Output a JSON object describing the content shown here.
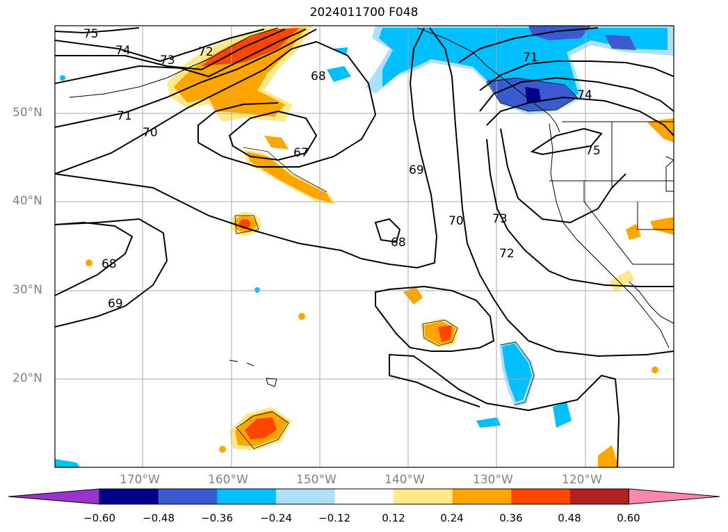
{
  "title": "2024011700 F048",
  "lat_labels": [
    "50°N",
    "40°N",
    "30°N",
    "20°N"
  ],
  "lon_labels": [
    "170°W",
    "160°W",
    "150°W",
    "140°W",
    "130°W",
    "120°W"
  ],
  "contour_labels": [
    "75",
    "74",
    "73",
    "72",
    "71",
    "70",
    "69",
    "68",
    "67",
    "68",
    "69",
    "68",
    "70",
    "73",
    "72",
    "71",
    "74",
    "75"
  ],
  "colorbar": {
    "colors": [
      "#9933cc",
      "#00008b",
      "#3a5bd0",
      "#00bfff",
      "#aee0f9",
      "#ffffff",
      "#fde98a",
      "#ffa500",
      "#ff4500",
      "#b22222",
      "#ff88aa"
    ],
    "ticks": [
      "−0.60",
      "−0.48",
      "−0.36",
      "−0.24",
      "−0.12",
      "0.12",
      "0.24",
      "0.36",
      "0.48",
      "0.60"
    ]
  }
}
